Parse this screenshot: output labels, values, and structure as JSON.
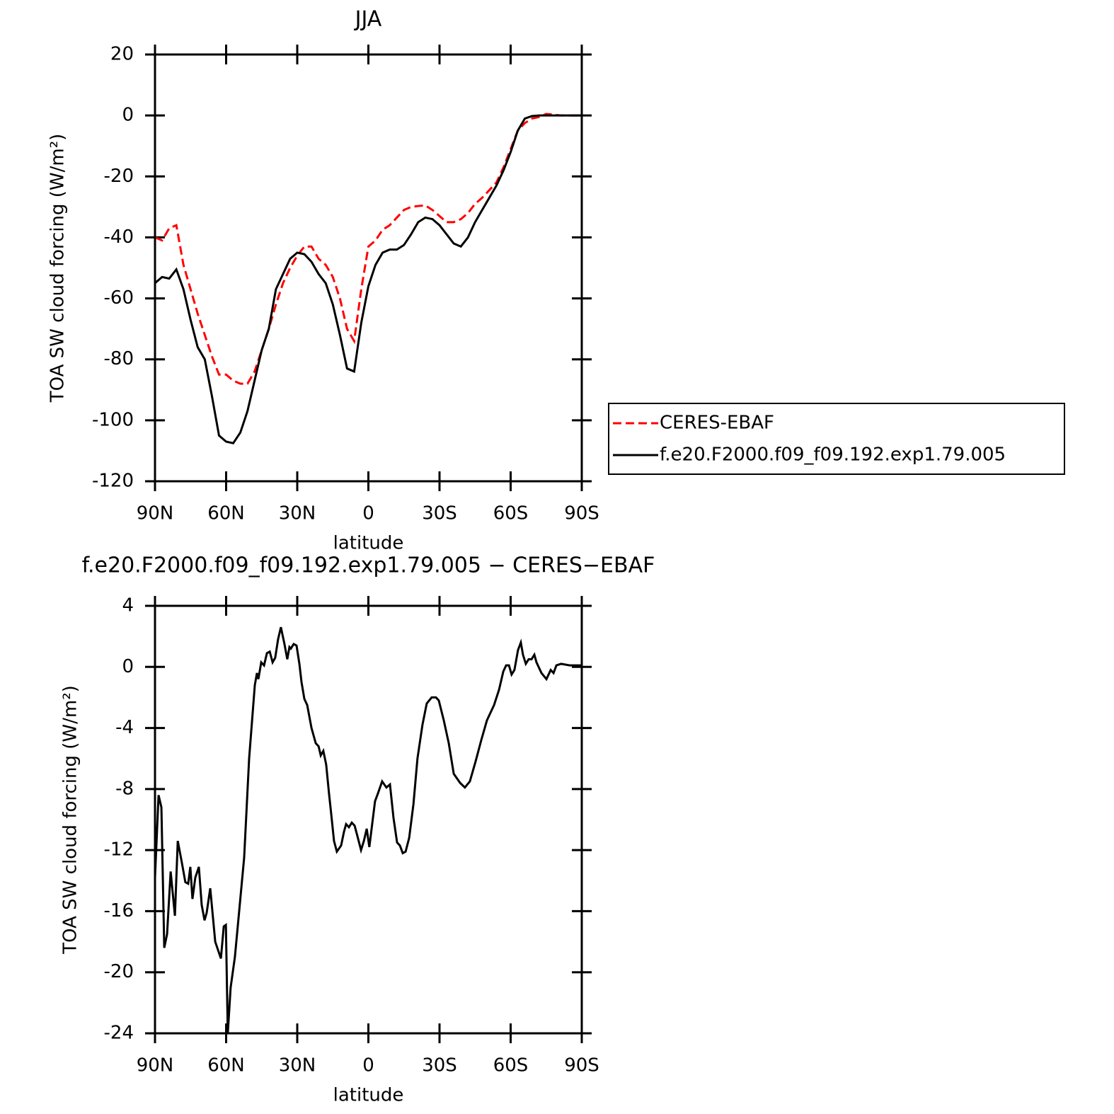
{
  "chart_data": [
    {
      "type": "line",
      "title": "JJA",
      "xlabel": "latitude",
      "ylabel": "TOA SW cloud forcing (W/m²)",
      "x": [
        90,
        87,
        84,
        81,
        78,
        75,
        72,
        69,
        66,
        63,
        60,
        57,
        54,
        51,
        48,
        45,
        42,
        39,
        36,
        33,
        30,
        27,
        24,
        21,
        18,
        15,
        12,
        9,
        6,
        3,
        0,
        -3,
        -6,
        -9,
        -12,
        -15,
        -18,
        -21,
        -24,
        -27,
        -30,
        -33,
        -36,
        -39,
        -42,
        -45,
        -48,
        -51,
        -54,
        -57,
        -60,
        -63,
        -66,
        -69,
        -72,
        -75,
        -78,
        -81,
        -84,
        -87,
        -90
      ],
      "xlim": [
        90,
        -90
      ],
      "xticks": [
        {
          "value": 90,
          "label": "90N"
        },
        {
          "value": 60,
          "label": "60N"
        },
        {
          "value": 30,
          "label": "30N"
        },
        0,
        {
          "value": -30,
          "label": "30S"
        },
        {
          "value": -60,
          "label": "60S"
        },
        {
          "value": -90,
          "label": "90S"
        }
      ],
      "ylim": [
        -120,
        20
      ],
      "yticks": [
        -120,
        -100,
        -80,
        -60,
        -40,
        -20,
        0,
        20
      ],
      "legend": "right",
      "series": [
        {
          "name": "CERES-EBAF",
          "color": "#ff0000",
          "dash": "dashed",
          "values": [
            -40,
            -41,
            -37,
            -36,
            -49,
            -57,
            -65,
            -72,
            -79,
            -85,
            -85,
            -87,
            -88,
            -88,
            -84,
            -77,
            -70,
            -62,
            -55,
            -50,
            -46,
            -43,
            -43,
            -47,
            -49,
            -53,
            -60,
            -70,
            -74,
            -57,
            -43,
            -41,
            -37.5,
            -36,
            -33.5,
            -31,
            -30,
            -29.7,
            -29.5,
            -31,
            -33,
            -35,
            -35,
            -34,
            -32,
            -29,
            -27,
            -24.5,
            -22,
            -17,
            -11,
            -5,
            -2.5,
            -1,
            -0.5,
            0.5,
            0.3,
            0,
            0,
            0,
            0
          ]
        },
        {
          "name": "f.e20.F2000.f09_f09.192.exp1.79.005",
          "color": "#000000",
          "dash": "solid",
          "values": [
            -55,
            -53,
            -53.5,
            -50.5,
            -57,
            -67,
            -76,
            -80,
            -92,
            -105,
            -107,
            -107.5,
            -104,
            -97,
            -87,
            -77,
            -70,
            -57,
            -52,
            -47,
            -45,
            -45.5,
            -48,
            -52,
            -55,
            -62,
            -72,
            -83,
            -84,
            -68,
            -56,
            -49,
            -45,
            -44,
            -44,
            -42.5,
            -39,
            -35,
            -33.5,
            -34,
            -36,
            -39,
            -42,
            -43,
            -40,
            -35,
            -31,
            -27,
            -23,
            -18,
            -12,
            -5,
            -1,
            -0.2,
            0,
            0,
            0,
            0,
            0,
            0,
            0
          ]
        }
      ]
    },
    {
      "type": "line",
      "title": "f.e20.F2000.f09_f09.192.exp1.79.005 − CERES−EBAF",
      "xlabel": "latitude",
      "ylabel": "TOA SW cloud forcing (W/m²)",
      "x": [
        90,
        88.5,
        87.3,
        86.1,
        84.9,
        83.4,
        81.6,
        80.4,
        78.7,
        77.2,
        76.0,
        75.1,
        74.2,
        73.0,
        71.5,
        70.3,
        69.1,
        68.2,
        66.7,
        64.6,
        62.2,
        61.0,
        60.1,
        59.3,
        58.1,
        56.3,
        54.5,
        52.4,
        50.3,
        47.9,
        47.0,
        46.4,
        45.2,
        44.0,
        42.8,
        41.6,
        40.4,
        39.3,
        38.1,
        36.9,
        35.4,
        34.2,
        33.3,
        32.7,
        31.5,
        30.3,
        29.1,
        28.2,
        27.0,
        25.8,
        24.0,
        22.2,
        21.0,
        20.1,
        19.0,
        17.8,
        16.6,
        15.7,
        14.5,
        13.3,
        11.5,
        10.3,
        9.4,
        8.2,
        7.0,
        5.8,
        4.6,
        3.1,
        1.9,
        0.7,
        -0.4,
        -1.6,
        -2.8,
        -4.0,
        -5.8,
        -7.6,
        -9.1,
        -10.6,
        -12.1,
        -13.3,
        -14.5,
        -15.7,
        -17.2,
        -19.0,
        -20.7,
        -22.8,
        -24.6,
        -26.7,
        -28.5,
        -29.7,
        -31.8,
        -33.9,
        -36.0,
        -38.7,
        -40.7,
        -42.8,
        -45.2,
        -47.6,
        -50.0,
        -53.0,
        -55.1,
        -56.9,
        -58.1,
        -59.3,
        -60.4,
        -61.6,
        -63.1,
        -64.3,
        -65.2,
        -66.4,
        -67.6,
        -68.8,
        -70.0,
        -70.9,
        -73.0,
        -75.1,
        -76.9,
        -78.1,
        -79.3,
        -81.3,
        -84.9,
        -90
      ],
      "xlim": [
        90,
        -90
      ],
      "xticks": [
        {
          "value": 90,
          "label": "90N"
        },
        {
          "value": 60,
          "label": "60N"
        },
        {
          "value": 30,
          "label": "30N"
        },
        0,
        {
          "value": -30,
          "label": "30S"
        },
        {
          "value": -60,
          "label": "60S"
        },
        {
          "value": -90,
          "label": "90S"
        }
      ],
      "ylim": [
        -24,
        4
      ],
      "yticks": [
        -24,
        -20,
        -16,
        -12,
        -8,
        -4,
        0,
        4
      ],
      "series": [
        {
          "color": "#000000",
          "dash": "solid",
          "values": [
            -13.8,
            -8.4,
            -9.2,
            -18.4,
            -17.5,
            -13.4,
            -16.3,
            -11.4,
            -12.8,
            -14.1,
            -14.2,
            -13.1,
            -15.2,
            -13.8,
            -13.1,
            -15.6,
            -16.6,
            -16.1,
            -14.5,
            -18.0,
            -19.1,
            -17.0,
            -16.9,
            -24,
            -21,
            -19,
            -16,
            -12.5,
            -6,
            -1.2,
            -0.4,
            -0.8,
            0.3,
            0.1,
            0.9,
            1.0,
            0.3,
            0.6,
            1.8,
            2.6,
            1.5,
            0.5,
            1.3,
            1.2,
            1.5,
            1.4,
            0.2,
            -1.0,
            -2.1,
            -2.5,
            -4.0,
            -5.0,
            -5.2,
            -5.8,
            -5.5,
            -6.4,
            -8.3,
            -9.6,
            -11.4,
            -12.1,
            -11.7,
            -10.8,
            -10.3,
            -10.5,
            -10.2,
            -10.4,
            -11.1,
            -12.0,
            -11.4,
            -10.6,
            -11.8,
            -10.3,
            -8.8,
            -8.3,
            -7.5,
            -7.9,
            -7.7,
            -9.9,
            -11.5,
            -11.7,
            -12.2,
            -12.1,
            -11.2,
            -9.0,
            -6.0,
            -3.8,
            -2.4,
            -2.0,
            -2.0,
            -2.2,
            -3.5,
            -5.0,
            -7.0,
            -7.6,
            -7.9,
            -7.5,
            -6.2,
            -4.8,
            -3.5,
            -2.5,
            -1.5,
            -0.3,
            0.1,
            0.1,
            -0.5,
            -0.2,
            1.1,
            1.6,
            0.8,
            0.2,
            0.5,
            0.5,
            0.8,
            0.3,
            -0.4,
            -0.8,
            -0.2,
            -0.4,
            0.1,
            0.2,
            0.1,
            0.1
          ]
        }
      ]
    }
  ]
}
